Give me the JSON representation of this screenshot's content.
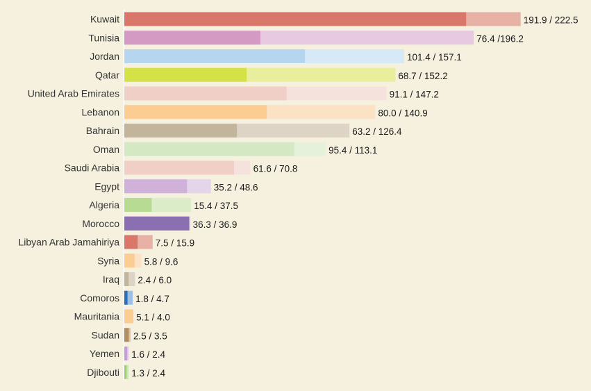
{
  "chart_data": {
    "type": "bar",
    "orientation": "horizontal",
    "layout": "overlapping-pair",
    "categories": [
      "Kuwait",
      "Tunisia",
      "Jordan",
      "Qatar",
      "United Arab Emirates",
      "Lebanon",
      "Bahrain",
      "Oman",
      "Saudi Arabia",
      "Egypt",
      "Algeria",
      "Morocco",
      "Libyan Arab Jamahiriya",
      "Syria",
      "Iraq",
      "Comoros",
      "Mauritania",
      "Sudan",
      "Yemen",
      "Djibouti"
    ],
    "series": [
      {
        "values": [
          191.9,
          76.4,
          101.4,
          68.7,
          91.1,
          80.0,
          63.2,
          95.4,
          61.6,
          35.2,
          15.4,
          36.3,
          7.5,
          5.8,
          2.4,
          1.8,
          5.1,
          2.5,
          1.6,
          1.3
        ]
      },
      {
        "values": [
          222.5,
          196.2,
          157.1,
          152.2,
          147.2,
          140.9,
          126.4,
          113.1,
          70.8,
          48.6,
          37.5,
          36.9,
          15.9,
          9.6,
          6.0,
          4.7,
          4.0,
          3.5,
          2.4,
          2.4
        ]
      }
    ],
    "value_labels": [
      "191.9 / 222.5",
      "76.4 /196.2",
      "101.4 / 157.1",
      "68.7 / 152.2",
      "91.1 / 147.2",
      "80.0 / 140.9",
      "63.2 / 126.4",
      "95.4 / 113.1",
      "61.6 / 70.8",
      "35.2 / 48.6",
      "15.4 / 37.5",
      "36.3 / 36.9",
      "7.5 / 15.9",
      "5.8 / 9.6",
      "2.4 / 6.0",
      "1.8 / 4.7",
      "5.1 / 4.0",
      "2.5 / 3.5",
      "1.6 / 2.4",
      "1.3 / 2.4"
    ],
    "bar_colors_dark": [
      "#d9776a",
      "#d49ac4",
      "#b5d6ee",
      "#d4e247",
      "#efcfc6",
      "#fbcd93",
      "#c2b59c",
      "#d4e8c4",
      "#efcfc6",
      "#d0b1d9",
      "#b7db92",
      "#8a70b0",
      "#d9776a",
      "#fbcd93",
      "#c2b59c",
      "#2f6fb5",
      "#fbcd93",
      "#b58e60",
      "#c79ed4",
      "#9dcf76"
    ],
    "bar_colors_light": [
      "#e7b1a5",
      "#e8c9e2",
      "#d7e8f6",
      "#e8ee9c",
      "#f6e2dc",
      "#fbe2c4",
      "#ddd4c6",
      "#e6f1dc",
      "#f6e2dc",
      "#e5d5ea",
      "#dbecc8",
      "#bfb0d6",
      "#e7b1a5",
      "#fbe2c4",
      "#ddd4c6",
      "#9ec0e6",
      "#fbe2c4",
      "#d8c4a6",
      "#e1c9ea",
      "#cde8b4"
    ],
    "xlim": [
      0,
      222.5
    ],
    "grid": false,
    "legend": "none"
  }
}
